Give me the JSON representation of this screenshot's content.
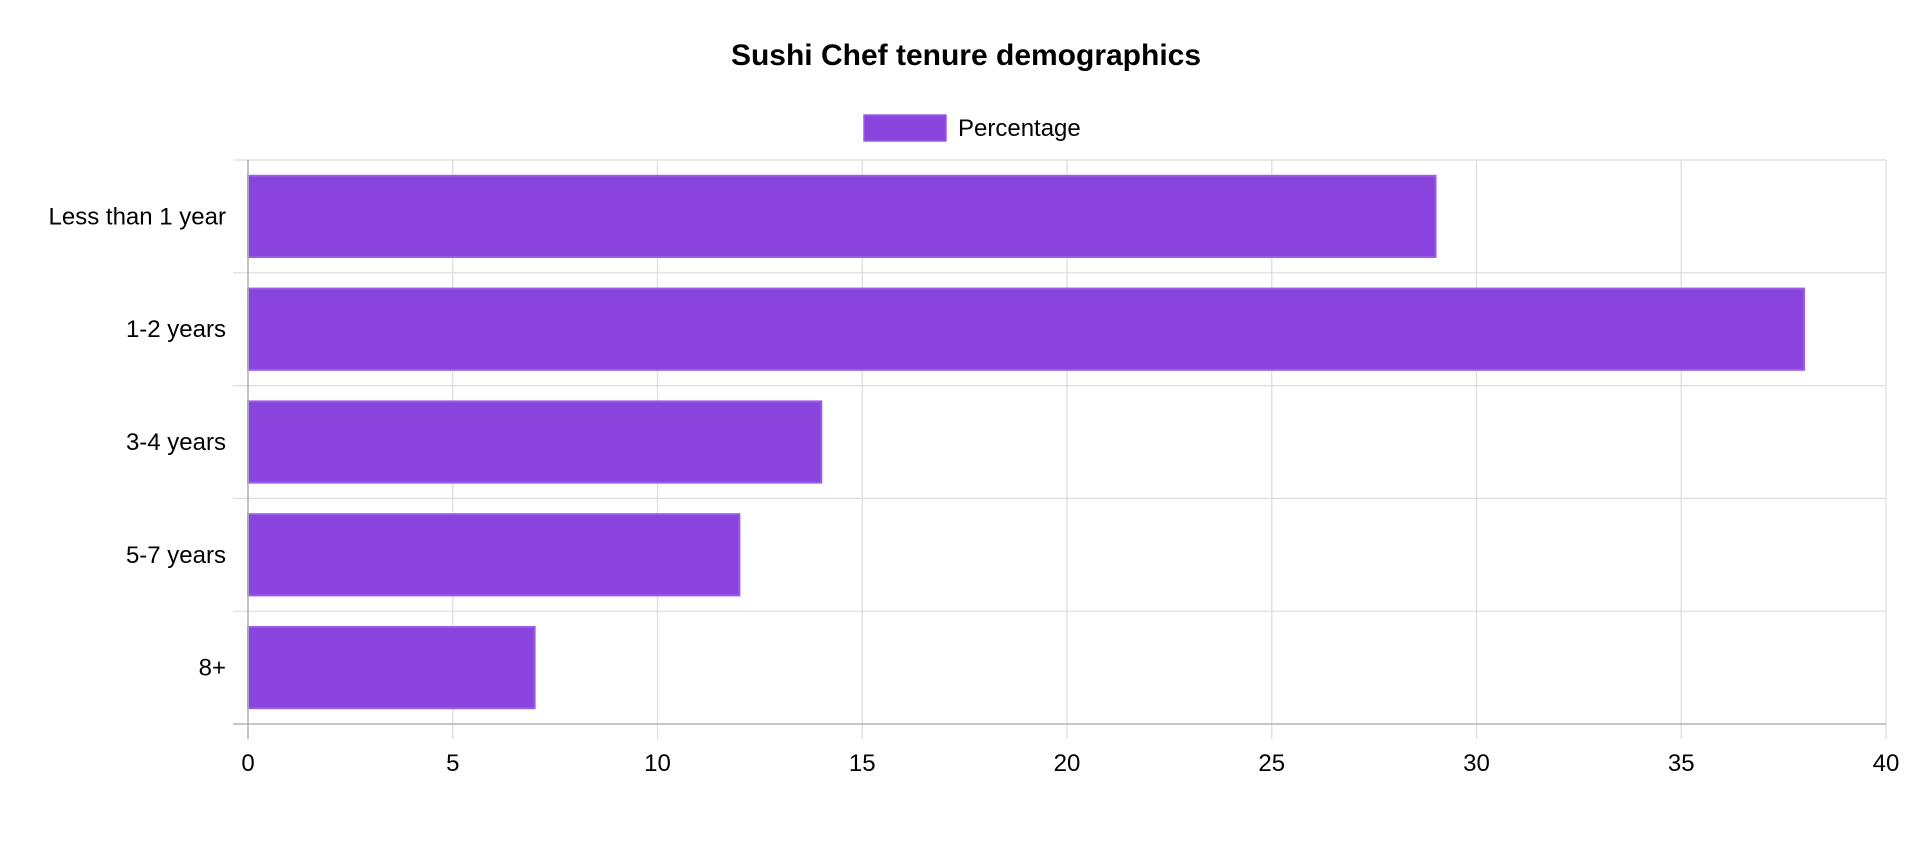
{
  "chart_data": {
    "type": "bar",
    "orientation": "horizontal",
    "title": "Sushi Chef tenure demographics",
    "categories": [
      "Less than 1 year",
      "1-2 years",
      "3-4 years",
      "5-7 years",
      "8+"
    ],
    "series": [
      {
        "name": "Percentage",
        "values": [
          29,
          38,
          14,
          12,
          7
        ],
        "color": "#8844dd",
        "border_color": "#9b5de5"
      }
    ],
    "xlim": [
      0,
      40
    ],
    "x_ticks": [
      0,
      5,
      10,
      15,
      20,
      25,
      30,
      35,
      40
    ],
    "xlabel": "",
    "ylabel": "",
    "grid": true,
    "legend_position": "top-center"
  }
}
